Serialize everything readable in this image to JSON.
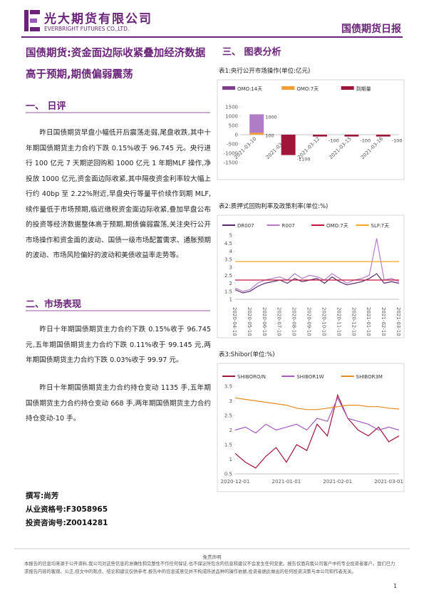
{
  "header": {
    "company_cn": "光大期货有限公司",
    "company_en": "EVERBRIGHT FUTURES CO.,LTD.",
    "report_title": "国债期货日报"
  },
  "main_title": "国债期货:资金面边际收紧叠加经济数据高于预期,期债偏弱震荡",
  "sections": [
    {
      "heading": "一、 日评",
      "paragraphs": [
        "昨日国债期货早盘小幅低开后震荡走弱,尾盘收跌,其中十年期国债期货主力合约下跌 0.15%收于 96.745 元。央行进行 100 亿元 7 天期逆回购和 1000 亿元 1 年期MLF 操作,净投放 1000 亿元,资金面边际收紧,其中隔夜资金利率较大幅上行约 40bp 至 2.22%附近,早盘央行等量平价续作到期 MLF,续作量低于市场预期,临近缴税资金面边际收紧,叠加早盘公布的投资等经济数据整体高于预期,期债偏弱震荡,关注央行公开市场操作和资金面的波动、国债一级市场配置需求、通胀预期的波动、市场风险偏好的波动和美债收益率走势等。"
      ]
    },
    {
      "heading": "二、市场表现",
      "paragraphs": [
        "昨日十年期国债期货主力合约下跌 0.15%收于 96.745 元,五年期国债期货主力合约下跌 0.11%收于 99.145 元,两年期国债期货主力合约下跌 0.03%收于 99.97 元。",
        "昨日十年期国债期货主力合约持仓变动 1135 手,五年期国债期货主力合约持仓变动 668 手,两年期国债期货主力合约持仓变动-10 手。"
      ]
    },
    {
      "heading": "三、 图表分析"
    }
  ],
  "author": [
    "撰写:尚芳",
    "从业资格号:F3058965",
    "投资咨询号:Z0014281"
  ],
  "charts": [
    {
      "type": "bar",
      "title": "表1:央行公开市场操作(单位:亿元)",
      "categories": [
        "2021-03-10",
        "2021-03-11",
        "2021-03-12",
        "2021-03-15",
        "2021-03-16"
      ],
      "series": [
        {
          "name": "OMO:14天",
          "color": "#7b3f8c",
          "bar_color": "#b07cc6",
          "values": [
            1000,
            null,
            null,
            null,
            null
          ]
        },
        {
          "name": "OMO:7天",
          "color": "#f39c32",
          "values": [
            100,
            null,
            null,
            null,
            null
          ]
        },
        {
          "name": "到期量",
          "color": "#a0163a",
          "values": [
            null,
            -1100,
            -100,
            -100,
            -100
          ]
        }
      ],
      "ylim": [
        -1500,
        1500
      ],
      "yticks": [
        1500,
        1000,
        500,
        0,
        -500,
        -1000,
        -1500
      ],
      "grid": false,
      "data_labels": true
    },
    {
      "type": "line",
      "title": "表2:质押式回购利率及政策利率(单位:%)",
      "categories": [
        "2020-04-10",
        null,
        "2020-05-10",
        null,
        "2020-06-10",
        null,
        "2020-07-10",
        null,
        "2020-08-10",
        null,
        "2020-09-10",
        null,
        "2020-10-10",
        null,
        "2020-11-10",
        null,
        "2020-12-10",
        null,
        "2021-01-10",
        null,
        "2021-02-10",
        null,
        "2021-03-10"
      ],
      "series": [
        {
          "name": "DR007",
          "color": "#5b2a6e",
          "values": [
            1.6,
            1.4,
            1.5,
            1.8,
            2.0,
            2.1,
            2.2,
            2.0,
            2.3,
            2.1,
            2.2,
            2.3,
            2.0,
            2.4,
            2.1,
            1.9,
            2.0,
            2.1,
            2.3,
            2.6,
            2.0,
            2.1,
            2.0
          ]
        },
        {
          "name": "R007",
          "color": "#b57cc9",
          "values": [
            1.7,
            1.5,
            1.6,
            2.0,
            2.2,
            2.3,
            2.4,
            2.2,
            2.6,
            2.3,
            2.5,
            2.4,
            2.2,
            2.6,
            2.3,
            2.0,
            2.2,
            2.3,
            2.5,
            4.8,
            2.2,
            2.3,
            2.1
          ]
        },
        {
          "name": "OMO:7天",
          "color": "#c0143c",
          "values": [
            2.2,
            2.2,
            2.2,
            2.2,
            2.2,
            2.2,
            2.2,
            2.2,
            2.2,
            2.2,
            2.2,
            2.2,
            2.2,
            2.2,
            2.2,
            2.2,
            2.2,
            2.2,
            2.2,
            2.2,
            2.2,
            2.2,
            2.2
          ]
        },
        {
          "name": "SLF:7天",
          "color": "#f5a623",
          "values": [
            3.35,
            3.35,
            3.35,
            3.35,
            3.35,
            3.35,
            3.35,
            3.35,
            3.35,
            3.35,
            3.35,
            3.35,
            3.35,
            3.35,
            3.35,
            3.35,
            3.35,
            3.35,
            3.35,
            3.35,
            3.35,
            3.35,
            3.35
          ]
        }
      ],
      "ylim": [
        1,
        5
      ],
      "yticks": [
        5,
        4.5,
        4,
        3.5,
        3,
        2.5,
        2,
        1.5,
        1
      ],
      "grid": false,
      "x_label_rotation": 90
    },
    {
      "type": "line",
      "title": "表3:Shibor(单位:%)",
      "categories": [
        "2020-12-01",
        null,
        null,
        null,
        null,
        "2021-01-01",
        null,
        null,
        null,
        null,
        "2021-02-01",
        null,
        null,
        null,
        null,
        "2021-03-01",
        null
      ],
      "series": [
        {
          "name": "SHIBORO/N",
          "color": "#a0163a",
          "values": [
            1.2,
            0.9,
            0.7,
            1.1,
            1.4,
            0.9,
            1.5,
            1.3,
            2.2,
            1.8,
            3.2,
            2.4,
            2.0,
            1.8,
            2.1,
            1.6,
            1.8
          ]
        },
        {
          "name": "SHIBOR1W",
          "color": "#a35bbd",
          "values": [
            2.0,
            2.1,
            1.9,
            2.2,
            2.0,
            2.1,
            2.2,
            2.0,
            2.4,
            2.3,
            3.1,
            2.4,
            2.3,
            2.2,
            2.0,
            2.1,
            2.0
          ]
        },
        {
          "name": "SHIBOR3M",
          "color": "#e58a1f",
          "values": [
            3.1,
            3.05,
            3.0,
            2.95,
            2.9,
            2.85,
            2.75,
            2.7,
            2.7,
            2.75,
            2.8,
            2.85,
            2.85,
            2.8,
            2.8,
            2.75,
            2.72
          ]
        }
      ],
      "ylim": [
        0.5,
        3.5
      ],
      "yticks": [
        3.5,
        3,
        2.5,
        2,
        1.5,
        1,
        0.5
      ],
      "grid": false,
      "x_label_rotation": 0
    }
  ],
  "footer": {
    "disclaimer_title": "免责声明",
    "disclaimer": "本报告的信息均来源于公开资料,我公司对这些信息的准确性和完整性不作任何保证,也不保证所包含的信息和建议不会发生任何变更。报告仅面向我公司客户中的专业投资者客户。我们已力求报告内容的客观、公正,但文中的观点、结论和建议仅供参考,报告中的信息或意见并不构成所述品种的操作依据,投资者据此做出的任何投资决策与本公司和作者无关。",
    "page": "1"
  }
}
